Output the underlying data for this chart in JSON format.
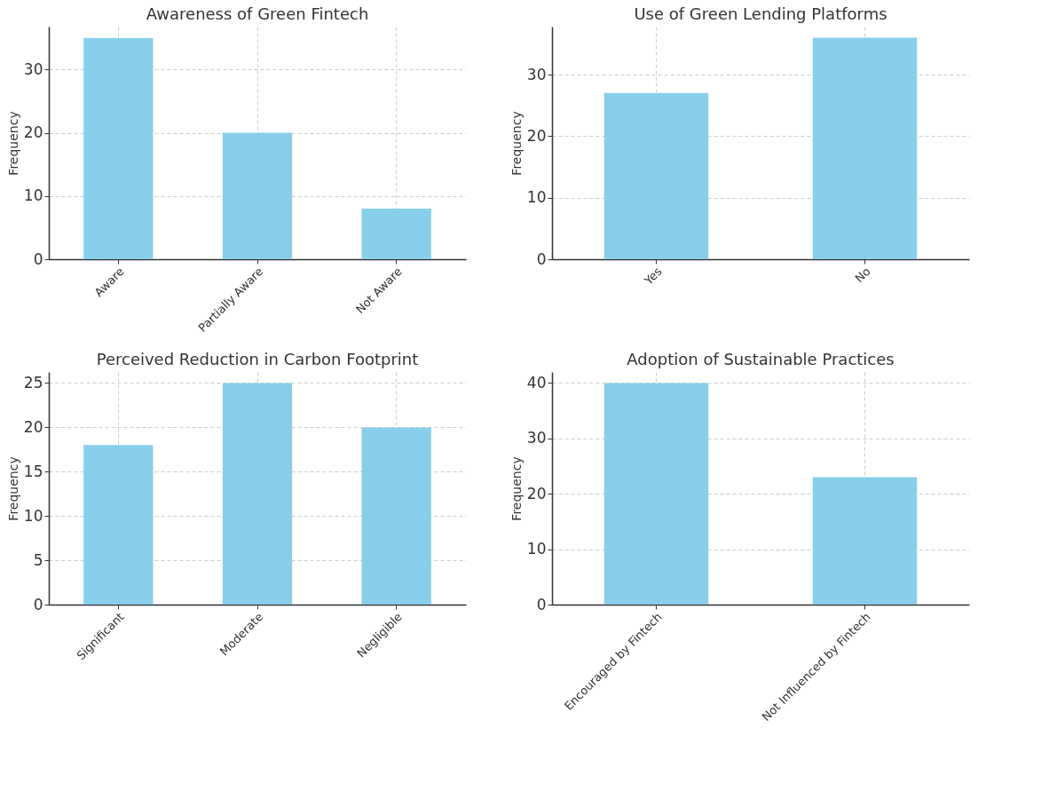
{
  "chart_data": [
    {
      "type": "bar",
      "title": "Awareness of Green Fintech",
      "ylabel": "Frequency",
      "categories": [
        "Aware",
        "Partially Aware",
        "Not Aware"
      ],
      "values": [
        35,
        20,
        8
      ],
      "color": "#87ceeb",
      "ylim": [
        0,
        36.8
      ],
      "yticks": [
        0,
        10,
        20,
        30
      ],
      "grid": true
    },
    {
      "type": "bar",
      "title": "Use of Green Lending Platforms",
      "ylabel": "Frequency",
      "categories": [
        "Yes",
        "No"
      ],
      "values": [
        27,
        36
      ],
      "color": "#87ceeb",
      "ylim": [
        0,
        37.8
      ],
      "yticks": [
        0,
        10,
        20,
        30
      ],
      "grid": true
    },
    {
      "type": "bar",
      "title": "Perceived Reduction in Carbon Footprint",
      "ylabel": "Frequency",
      "categories": [
        "Significant",
        "Moderate",
        "Negligible"
      ],
      "values": [
        18,
        25,
        20
      ],
      "color": "#87ceeb",
      "ylim": [
        0,
        26.25
      ],
      "yticks": [
        0,
        5,
        10,
        15,
        20,
        25
      ],
      "grid": true
    },
    {
      "type": "bar",
      "title": "Adoption of Sustainable Practices",
      "ylabel": "Frequency",
      "categories": [
        "Encouraged by Fintech",
        "Not Influenced by Fintech"
      ],
      "values": [
        40,
        23
      ],
      "color": "#87ceeb",
      "ylim": [
        0,
        42
      ],
      "yticks": [
        0,
        10,
        20,
        30,
        40
      ],
      "grid": true
    }
  ]
}
